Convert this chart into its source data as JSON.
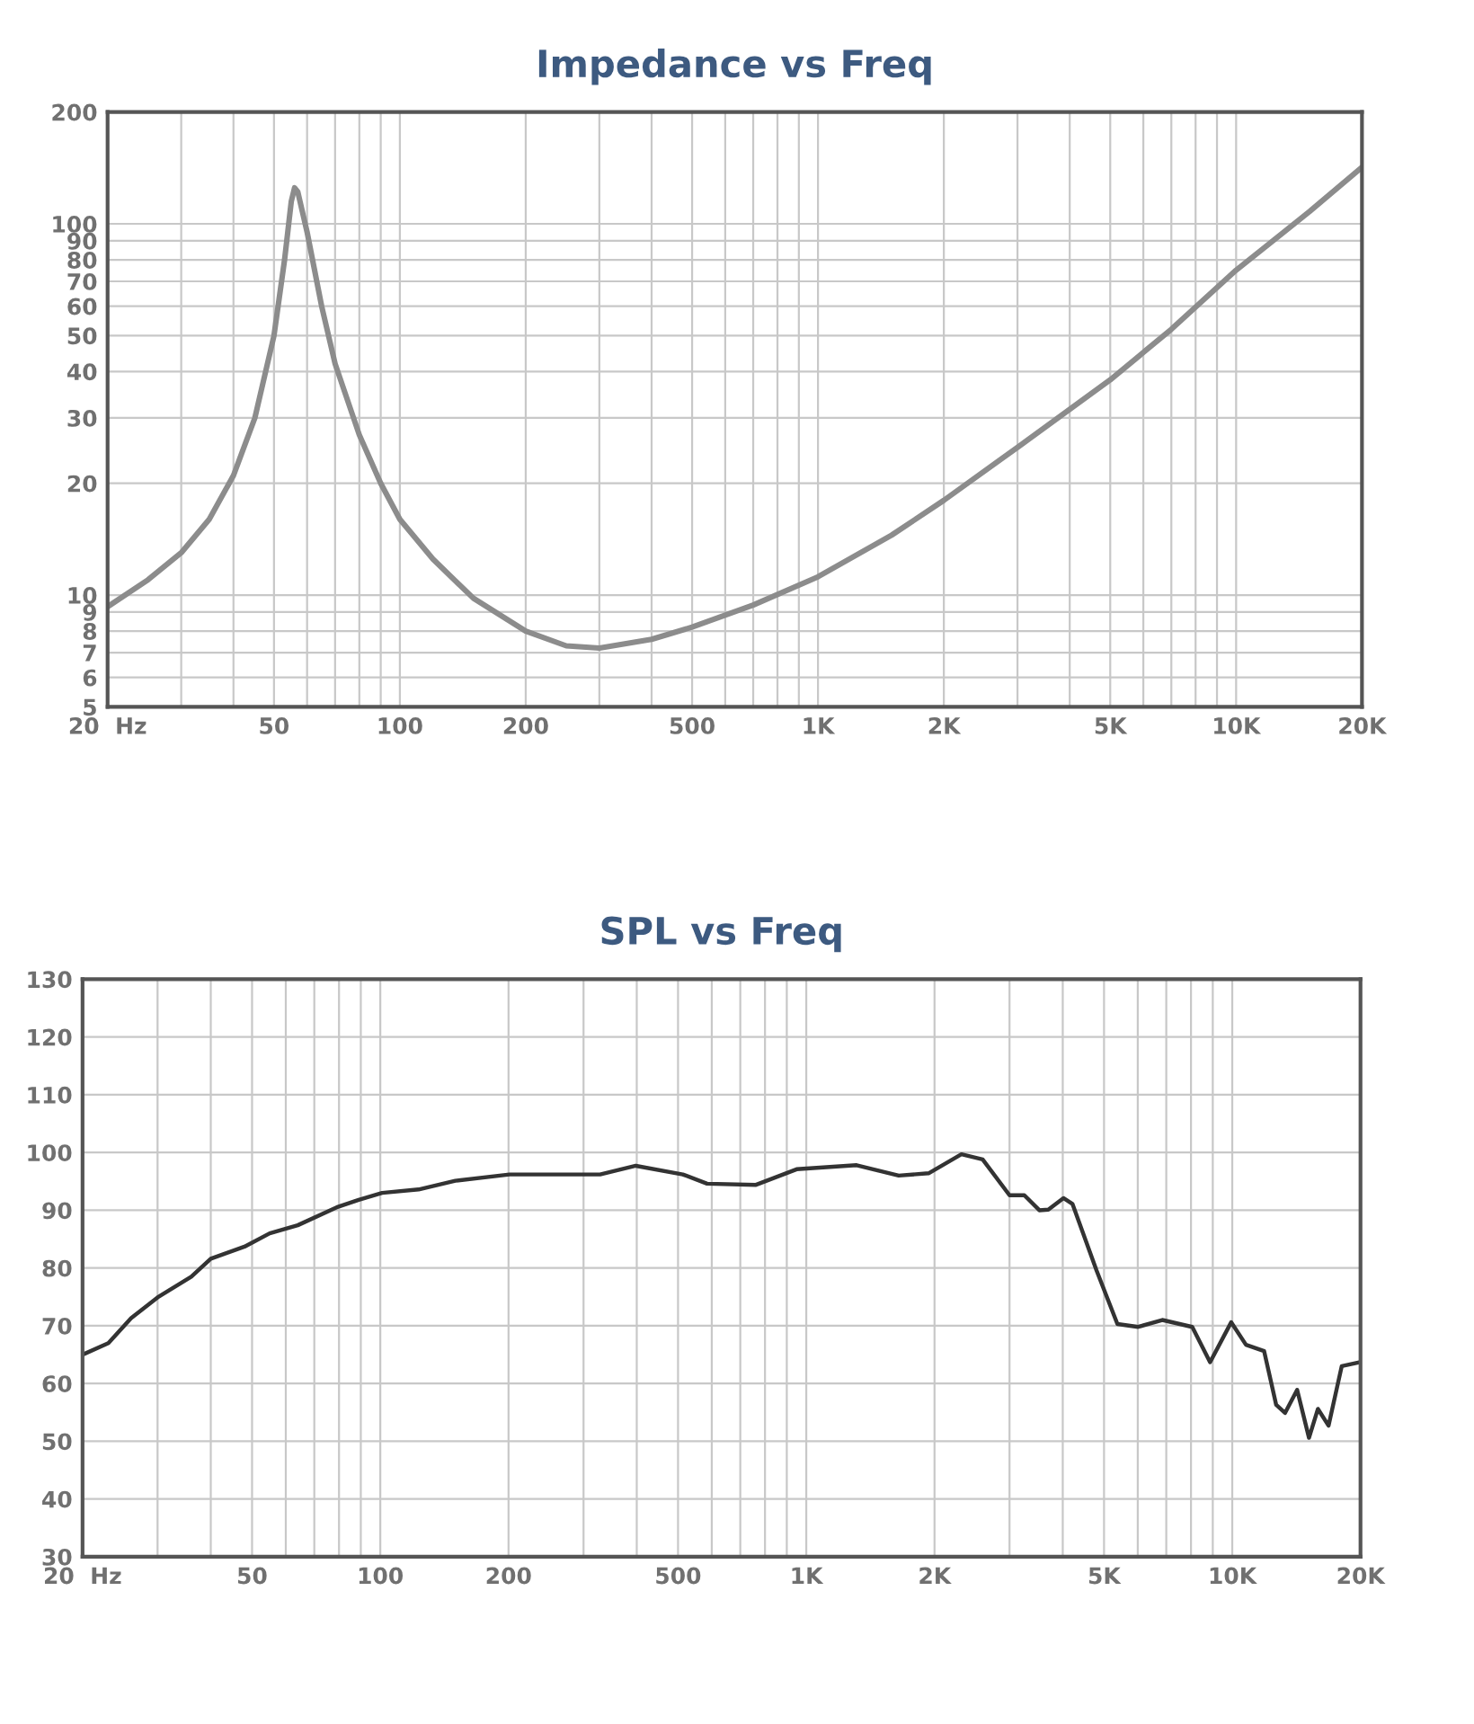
{
  "chart_data": [
    {
      "type": "line",
      "title": "Impedance vs Freq",
      "log": "xy",
      "grid": true,
      "xlim": [
        20,
        20000
      ],
      "ylim": [
        5,
        200
      ],
      "xticks": [
        {
          "value": 20,
          "label": "20  Hz"
        },
        {
          "value": 30,
          "label": null
        },
        {
          "value": 40,
          "label": null
        },
        50,
        {
          "value": 60,
          "label": null
        },
        {
          "value": 70,
          "label": null
        },
        {
          "value": 80,
          "label": null
        },
        {
          "value": 90,
          "label": null
        },
        100,
        200,
        {
          "value": 300,
          "label": null
        },
        {
          "value": 400,
          "label": null
        },
        500,
        {
          "value": 600,
          "label": null
        },
        {
          "value": 700,
          "label": null
        },
        {
          "value": 800,
          "label": null
        },
        {
          "value": 900,
          "label": null
        },
        {
          "value": 1000,
          "label": "1K"
        },
        {
          "value": 2000,
          "label": "2K"
        },
        {
          "value": 3000,
          "label": null
        },
        {
          "value": 4000,
          "label": null
        },
        {
          "value": 5000,
          "label": "5K"
        },
        {
          "value": 6000,
          "label": null
        },
        {
          "value": 7000,
          "label": null
        },
        {
          "value": 8000,
          "label": null
        },
        {
          "value": 9000,
          "label": null
        },
        {
          "value": 10000,
          "label": "10K"
        },
        {
          "value": 20000,
          "label": "20K"
        }
      ],
      "yticks": [
        5,
        6,
        7,
        8,
        9,
        10,
        20,
        30,
        40,
        50,
        60,
        70,
        80,
        90,
        100,
        200
      ],
      "series": [
        {
          "color": "#8c8c8c",
          "x": [
            20,
            25,
            30,
            35,
            40,
            45,
            50,
            53,
            55,
            56,
            57,
            60,
            65,
            70,
            80,
            90,
            100,
            120,
            150,
            200,
            250,
            300,
            400,
            500,
            700,
            1000,
            1500,
            2000,
            3000,
            5000,
            7000,
            10000,
            15000,
            20000
          ],
          "values": [
            9.3,
            11,
            13,
            16,
            21,
            30,
            50,
            80,
            115,
            125,
            122,
            95,
            60,
            42,
            27,
            20,
            16,
            12.5,
            9.8,
            8.0,
            7.3,
            7.2,
            7.6,
            8.2,
            9.4,
            11.2,
            14.5,
            18,
            25,
            38,
            52,
            75,
            108,
            142
          ]
        }
      ]
    },
    {
      "type": "line",
      "title": "SPL vs Freq",
      "log": "x",
      "grid": true,
      "xlim": [
        20,
        20000
      ],
      "ylim": [
        30,
        130
      ],
      "xticks": [
        {
          "value": 20,
          "label": "20  Hz"
        },
        {
          "value": 30,
          "label": null
        },
        {
          "value": 40,
          "label": null
        },
        50,
        {
          "value": 60,
          "label": null
        },
        {
          "value": 70,
          "label": null
        },
        {
          "value": 80,
          "label": null
        },
        {
          "value": 90,
          "label": null
        },
        100,
        200,
        {
          "value": 300,
          "label": null
        },
        {
          "value": 400,
          "label": null
        },
        500,
        {
          "value": 600,
          "label": null
        },
        {
          "value": 700,
          "label": null
        },
        {
          "value": 800,
          "label": null
        },
        {
          "value": 900,
          "label": null
        },
        {
          "value": 1000,
          "label": "1K"
        },
        {
          "value": 2000,
          "label": "2K"
        },
        {
          "value": 3000,
          "label": null
        },
        {
          "value": 4000,
          "label": null
        },
        {
          "value": 5000,
          "label": "5K"
        },
        {
          "value": 6000,
          "label": null
        },
        {
          "value": 7000,
          "label": null
        },
        {
          "value": 8000,
          "label": null
        },
        {
          "value": 9000,
          "label": null
        },
        {
          "value": 10000,
          "label": "10K"
        },
        {
          "value": 20000,
          "label": "20K"
        }
      ],
      "yticks": [
        30,
        40,
        50,
        60,
        70,
        80,
        90,
        100,
        110,
        120,
        130
      ],
      "series": [
        {
          "color": "#333333",
          "x": [
            20,
            23,
            26,
            30,
            36,
            40,
            48,
            55,
            64,
            79,
            89,
            101,
            123,
            150,
            201,
            278,
            328,
            398,
            513,
            585,
            762,
            949,
            1313,
            1648,
            1937,
            2313,
            2594,
            3000,
            3250,
            3525,
            3700,
            4015,
            4215,
            4800,
            5375,
            6014,
            6850,
            8055,
            8870,
            9940,
            10770,
            11880,
            12680,
            13300,
            14200,
            15140,
            15890,
            16830,
            18070,
            19950
          ],
          "values": [
            65,
            67,
            71.3,
            74.9,
            78.5,
            81.6,
            83.7,
            86,
            87.4,
            90.5,
            91.8,
            93,
            93.6,
            95.1,
            96.2,
            96.2,
            96.2,
            97.7,
            96.2,
            94.6,
            94.4,
            97.1,
            97.8,
            96.0,
            96.4,
            99.7,
            98.8,
            92.6,
            92.6,
            90.0,
            90.1,
            92.1,
            91.1,
            79.6,
            70.3,
            69.8,
            71.0,
            69.8,
            63.7,
            70.6,
            66.7,
            65.6,
            56.3,
            54.9,
            58.9,
            50.6,
            55.6,
            52.7,
            63.0,
            63.7
          ]
        }
      ]
    }
  ]
}
